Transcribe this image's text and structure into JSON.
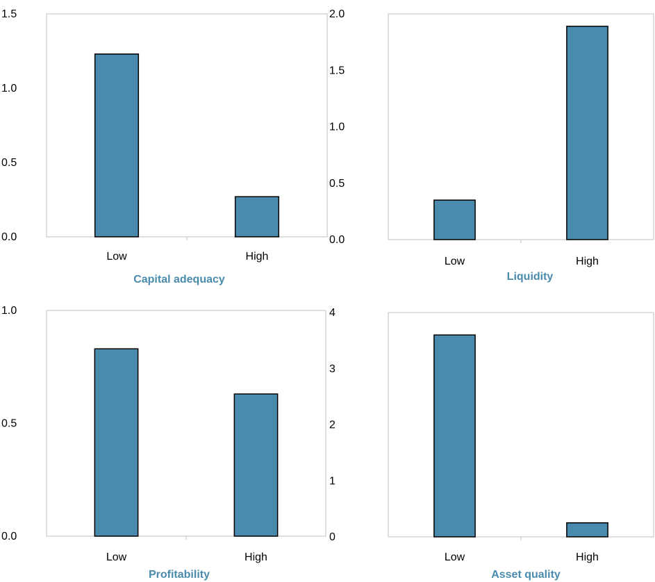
{
  "colors": {
    "bar_fill": "#4a8bad",
    "bar_stroke": "#000000",
    "title": "#4a8bad",
    "frame": "#bfbfbf"
  },
  "chart_data": [
    {
      "type": "bar",
      "title": "Capital adequacy",
      "categories": [
        "Low",
        "High"
      ],
      "values": [
        1.23,
        0.27
      ],
      "ylim": [
        0,
        1.5
      ],
      "yticks": [
        0.0,
        0.5,
        1.0,
        1.5
      ],
      "ytick_labels": [
        "0.0",
        "0.5",
        "1.0",
        "1.5"
      ]
    },
    {
      "type": "bar",
      "title": "Liquidity",
      "categories": [
        "Low",
        "High"
      ],
      "values": [
        0.35,
        1.89
      ],
      "ylim": [
        0,
        2.0
      ],
      "yticks": [
        0.0,
        0.5,
        1.0,
        1.5,
        2.0
      ],
      "ytick_labels": [
        "0.0",
        "0.5",
        "1.0",
        "1.5",
        "2.0"
      ]
    },
    {
      "type": "bar",
      "title": "Profitability",
      "categories": [
        "Low",
        "High"
      ],
      "values": [
        0.83,
        0.63
      ],
      "ylim": [
        0,
        1.0
      ],
      "yticks": [
        0.0,
        0.5,
        1.0
      ],
      "ytick_labels": [
        "0.0",
        "0.5",
        "1.0"
      ]
    },
    {
      "type": "bar",
      "title": "Asset quality",
      "categories": [
        "Low",
        "High"
      ],
      "values": [
        3.6,
        0.25
      ],
      "ylim": [
        0,
        4
      ],
      "yticks": [
        0,
        1,
        2,
        3,
        4
      ],
      "ytick_labels": [
        "0",
        "1",
        "2",
        "3",
        "4"
      ]
    }
  ]
}
